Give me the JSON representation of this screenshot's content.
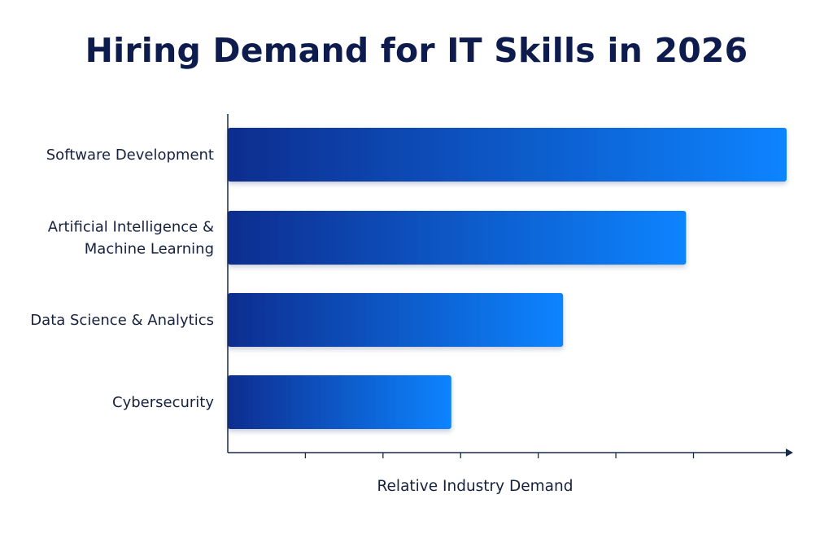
{
  "chart_data": {
    "type": "bar",
    "orientation": "horizontal",
    "title": "Hiring Demand for IT Skills in 2026",
    "xlabel": "Relative Industry Demand",
    "ylabel": "",
    "categories": [
      [
        "Software Development"
      ],
      [
        "Artificial Intelligence &",
        "Machine Learning"
      ],
      [
        "Data Science & Analytics"
      ],
      [
        "Cybersecurity"
      ]
    ],
    "values": [
      100,
      82,
      60,
      40
    ],
    "xlim": [
      0,
      100
    ],
    "x_tick_labels_shown": false,
    "grid": false,
    "legend": "none",
    "colors": {
      "bar_gradient_start": "#0a2d8f",
      "bar_gradient_end": "#0a84ff",
      "axis": "#1a2a4a",
      "title": "#0d1b4d",
      "text": "#16213e"
    }
  }
}
